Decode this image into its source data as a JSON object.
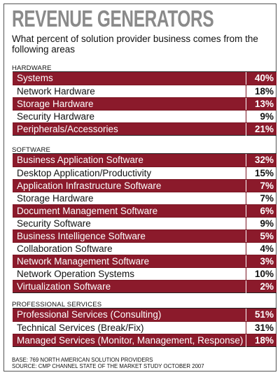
{
  "title": "REVENUE GENERATORS",
  "subtitle": "What percent of solution provider business comes from the following areas",
  "colors": {
    "dark_row": "#8b1a2b",
    "title": "#8a8a8a"
  },
  "footnote": {
    "base": "BASE: 769 NORTH AMERICAN SOLUTION PROVIDERS",
    "source": "SOURCE: CMP CHANNEL STATE OF THE MARKET STUDY OCTOBER 2007"
  },
  "chart_data": {
    "type": "table",
    "title": "REVENUE GENERATORS",
    "subtitle": "What percent of solution provider business comes from the following areas",
    "sections": [
      {
        "name": "HARDWARE",
        "rows": [
          {
            "label": "Systems",
            "value": "40%"
          },
          {
            "label": "Network Hardware",
            "value": "18%"
          },
          {
            "label": "Storage Hardware",
            "value": "13%"
          },
          {
            "label": "Security Hardware",
            "value": "9%"
          },
          {
            "label": "Peripherals/Accessories",
            "value": "21%"
          }
        ]
      },
      {
        "name": "SOFTWARE",
        "rows": [
          {
            "label": "Business Application Software",
            "value": "32%"
          },
          {
            "label": "Desktop Application/Productivity",
            "value": "15%"
          },
          {
            "label": "Application Infrastructure Software",
            "value": "7%"
          },
          {
            "label": "Storage Hardware",
            "value": "7%"
          },
          {
            "label": "Document Management Software",
            "value": "6%"
          },
          {
            "label": "Security Software",
            "value": "9%"
          },
          {
            "label": "Business Intelligence Software",
            "value": "5%"
          },
          {
            "label": "Collaboration Software",
            "value": "4%"
          },
          {
            "label": "Network Management Software",
            "value": "3%"
          },
          {
            "label": "Network Operation Systems",
            "value": "10%"
          },
          {
            "label": "Virtualization Software",
            "value": "2%"
          }
        ]
      },
      {
        "name": "PROFESSIONAL SERVICES",
        "rows": [
          {
            "label": "Professional Services (Consulting)",
            "value": "51%"
          },
          {
            "label": "Technical Services (Break/Fix)",
            "value": "31%"
          },
          {
            "label": "Managed Services (Monitor, Management, Response)",
            "value": "18%"
          }
        ]
      }
    ]
  }
}
